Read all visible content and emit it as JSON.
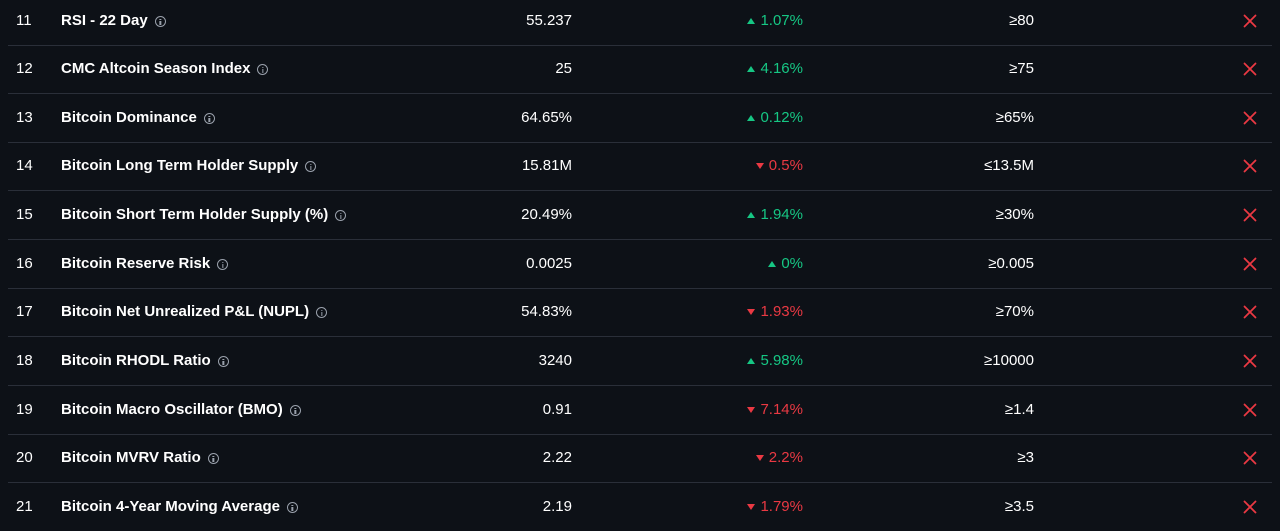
{
  "colors": {
    "background": "#0d1117",
    "divider": "#2a2f39",
    "up": "#16c784",
    "down": "#ea3943",
    "fail": "#ea3943"
  },
  "rows": [
    {
      "index": "11",
      "name": "RSI - 22 Day",
      "value": "55.237",
      "change": "1.07%",
      "direction": "up",
      "target": "≥80",
      "status_icon": "x-icon"
    },
    {
      "index": "12",
      "name": "CMC Altcoin Season Index",
      "value": "25",
      "change": "4.16%",
      "direction": "up",
      "target": "≥75",
      "status_icon": "x-icon"
    },
    {
      "index": "13",
      "name": "Bitcoin Dominance",
      "value": "64.65%",
      "change": "0.12%",
      "direction": "up",
      "target": "≥65%",
      "status_icon": "x-icon"
    },
    {
      "index": "14",
      "name": "Bitcoin Long Term Holder Supply",
      "value": "15.81M",
      "change": "0.5%",
      "direction": "down",
      "target": "≤13.5M",
      "status_icon": "x-icon"
    },
    {
      "index": "15",
      "name": "Bitcoin Short Term Holder Supply (%)",
      "value": "20.49%",
      "change": "1.94%",
      "direction": "up",
      "target": "≥30%",
      "status_icon": "x-icon"
    },
    {
      "index": "16",
      "name": "Bitcoin Reserve Risk",
      "value": "0.0025",
      "change": "0%",
      "direction": "up",
      "target": "≥0.005",
      "status_icon": "x-icon"
    },
    {
      "index": "17",
      "name": "Bitcoin Net Unrealized P&L (NUPL)",
      "value": "54.83%",
      "change": "1.93%",
      "direction": "down",
      "target": "≥70%",
      "status_icon": "x-icon"
    },
    {
      "index": "18",
      "name": "Bitcoin RHODL Ratio",
      "value": "3240",
      "change": "5.98%",
      "direction": "up",
      "target": "≥10000",
      "status_icon": "x-icon"
    },
    {
      "index": "19",
      "name": "Bitcoin Macro Oscillator (BMO)",
      "value": "0.91",
      "change": "7.14%",
      "direction": "down",
      "target": "≥1.4",
      "status_icon": "x-icon"
    },
    {
      "index": "20",
      "name": "Bitcoin MVRV Ratio",
      "value": "2.22",
      "change": "2.2%",
      "direction": "down",
      "target": "≥3",
      "status_icon": "x-icon"
    },
    {
      "index": "21",
      "name": "Bitcoin 4-Year Moving Average",
      "value": "2.19",
      "change": "1.79%",
      "direction": "down",
      "target": "≥3.5",
      "status_icon": "x-icon"
    }
  ]
}
